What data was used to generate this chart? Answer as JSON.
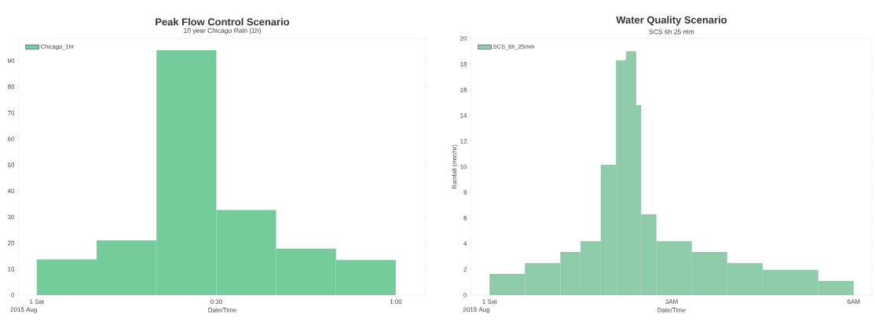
{
  "chart_data": [
    {
      "type": "histogram",
      "title": "Peak Flow Control Scenario",
      "subtitle": "10 year Chicago Rain (1h)",
      "xlabel": "Date/Time",
      "annotations": [
        "2015 Aug"
      ],
      "bins": [
        "2015-08-01T00:00",
        "2015-08-01T00:10",
        "2015-08-01T00:20",
        "2015-08-01T00:30",
        "2015-08-01T00:40",
        "2015-08-01T00:50",
        "2015-08-01T01:00"
      ],
      "series": [
        {
          "name": "Chicago_1hr",
          "color": "#74cc9a",
          "values": [
            13.7,
            21,
            94.1,
            32.7,
            17.9,
            13.5
          ]
        }
      ],
      "xlim": [
        "2015-07-31T23:57",
        "2015-08-01T01:05"
      ],
      "xticks": [
        {
          "value": "2015-08-01T00:00",
          "label": "1 Sat"
        },
        {
          "value": "2015-08-01T00:30",
          "label": "0:30"
        },
        {
          "value": "2015-08-01T01:00",
          "label": "1:00"
        }
      ],
      "ylim": [
        0,
        98.6
      ],
      "yticks": [
        0,
        10,
        20,
        30,
        40,
        50,
        60,
        70,
        80,
        90
      ],
      "legend": "top left"
    },
    {
      "type": "histogram",
      "title": "Water Quality Scenario",
      "subtitle": "SCS 6h 25 mm",
      "xlabel": "Date/Time",
      "ylabel": "Rainfall (mm/hr)",
      "annotations": [
        "2015 Aug"
      ],
      "bins": [
        "2015-08-01T00:00",
        "2015-08-01T00:35",
        "2015-08-01T01:10",
        "2015-08-01T01:30",
        "2015-08-01T01:50",
        "2015-08-01T02:05",
        "2015-08-01T02:15",
        "2015-08-01T02:25",
        "2015-08-01T02:30",
        "2015-08-01T02:45",
        "2015-08-01T03:20",
        "2015-08-01T03:55",
        "2015-08-01T04:30",
        "2015-08-01T05:25",
        "2015-08-01T06:00"
      ],
      "series": [
        {
          "name": "SCS_6h_25mm",
          "color": "#8ecba8",
          "values": [
            1.65,
            2.5,
            3.36,
            4.2,
            10.16,
            18.3,
            19.0,
            14.8,
            6.3,
            4.2,
            3.36,
            2.5,
            1.97,
            1.1
          ]
        }
      ],
      "xlim": [
        "2015-07-31T23:42",
        "2015-08-01T06:18"
      ],
      "xticks": [
        {
          "value": "2015-08-01T00:00",
          "label": "1 Sat"
        },
        {
          "value": "2015-08-01T03:00",
          "label": "3AM"
        },
        {
          "value": "2015-08-01T06:00",
          "label": "6AM"
        }
      ],
      "ylim": [
        0,
        20
      ],
      "yticks": [
        0,
        2,
        4,
        6,
        8,
        10,
        12,
        14,
        16,
        18,
        20
      ],
      "legend": "top left"
    }
  ]
}
